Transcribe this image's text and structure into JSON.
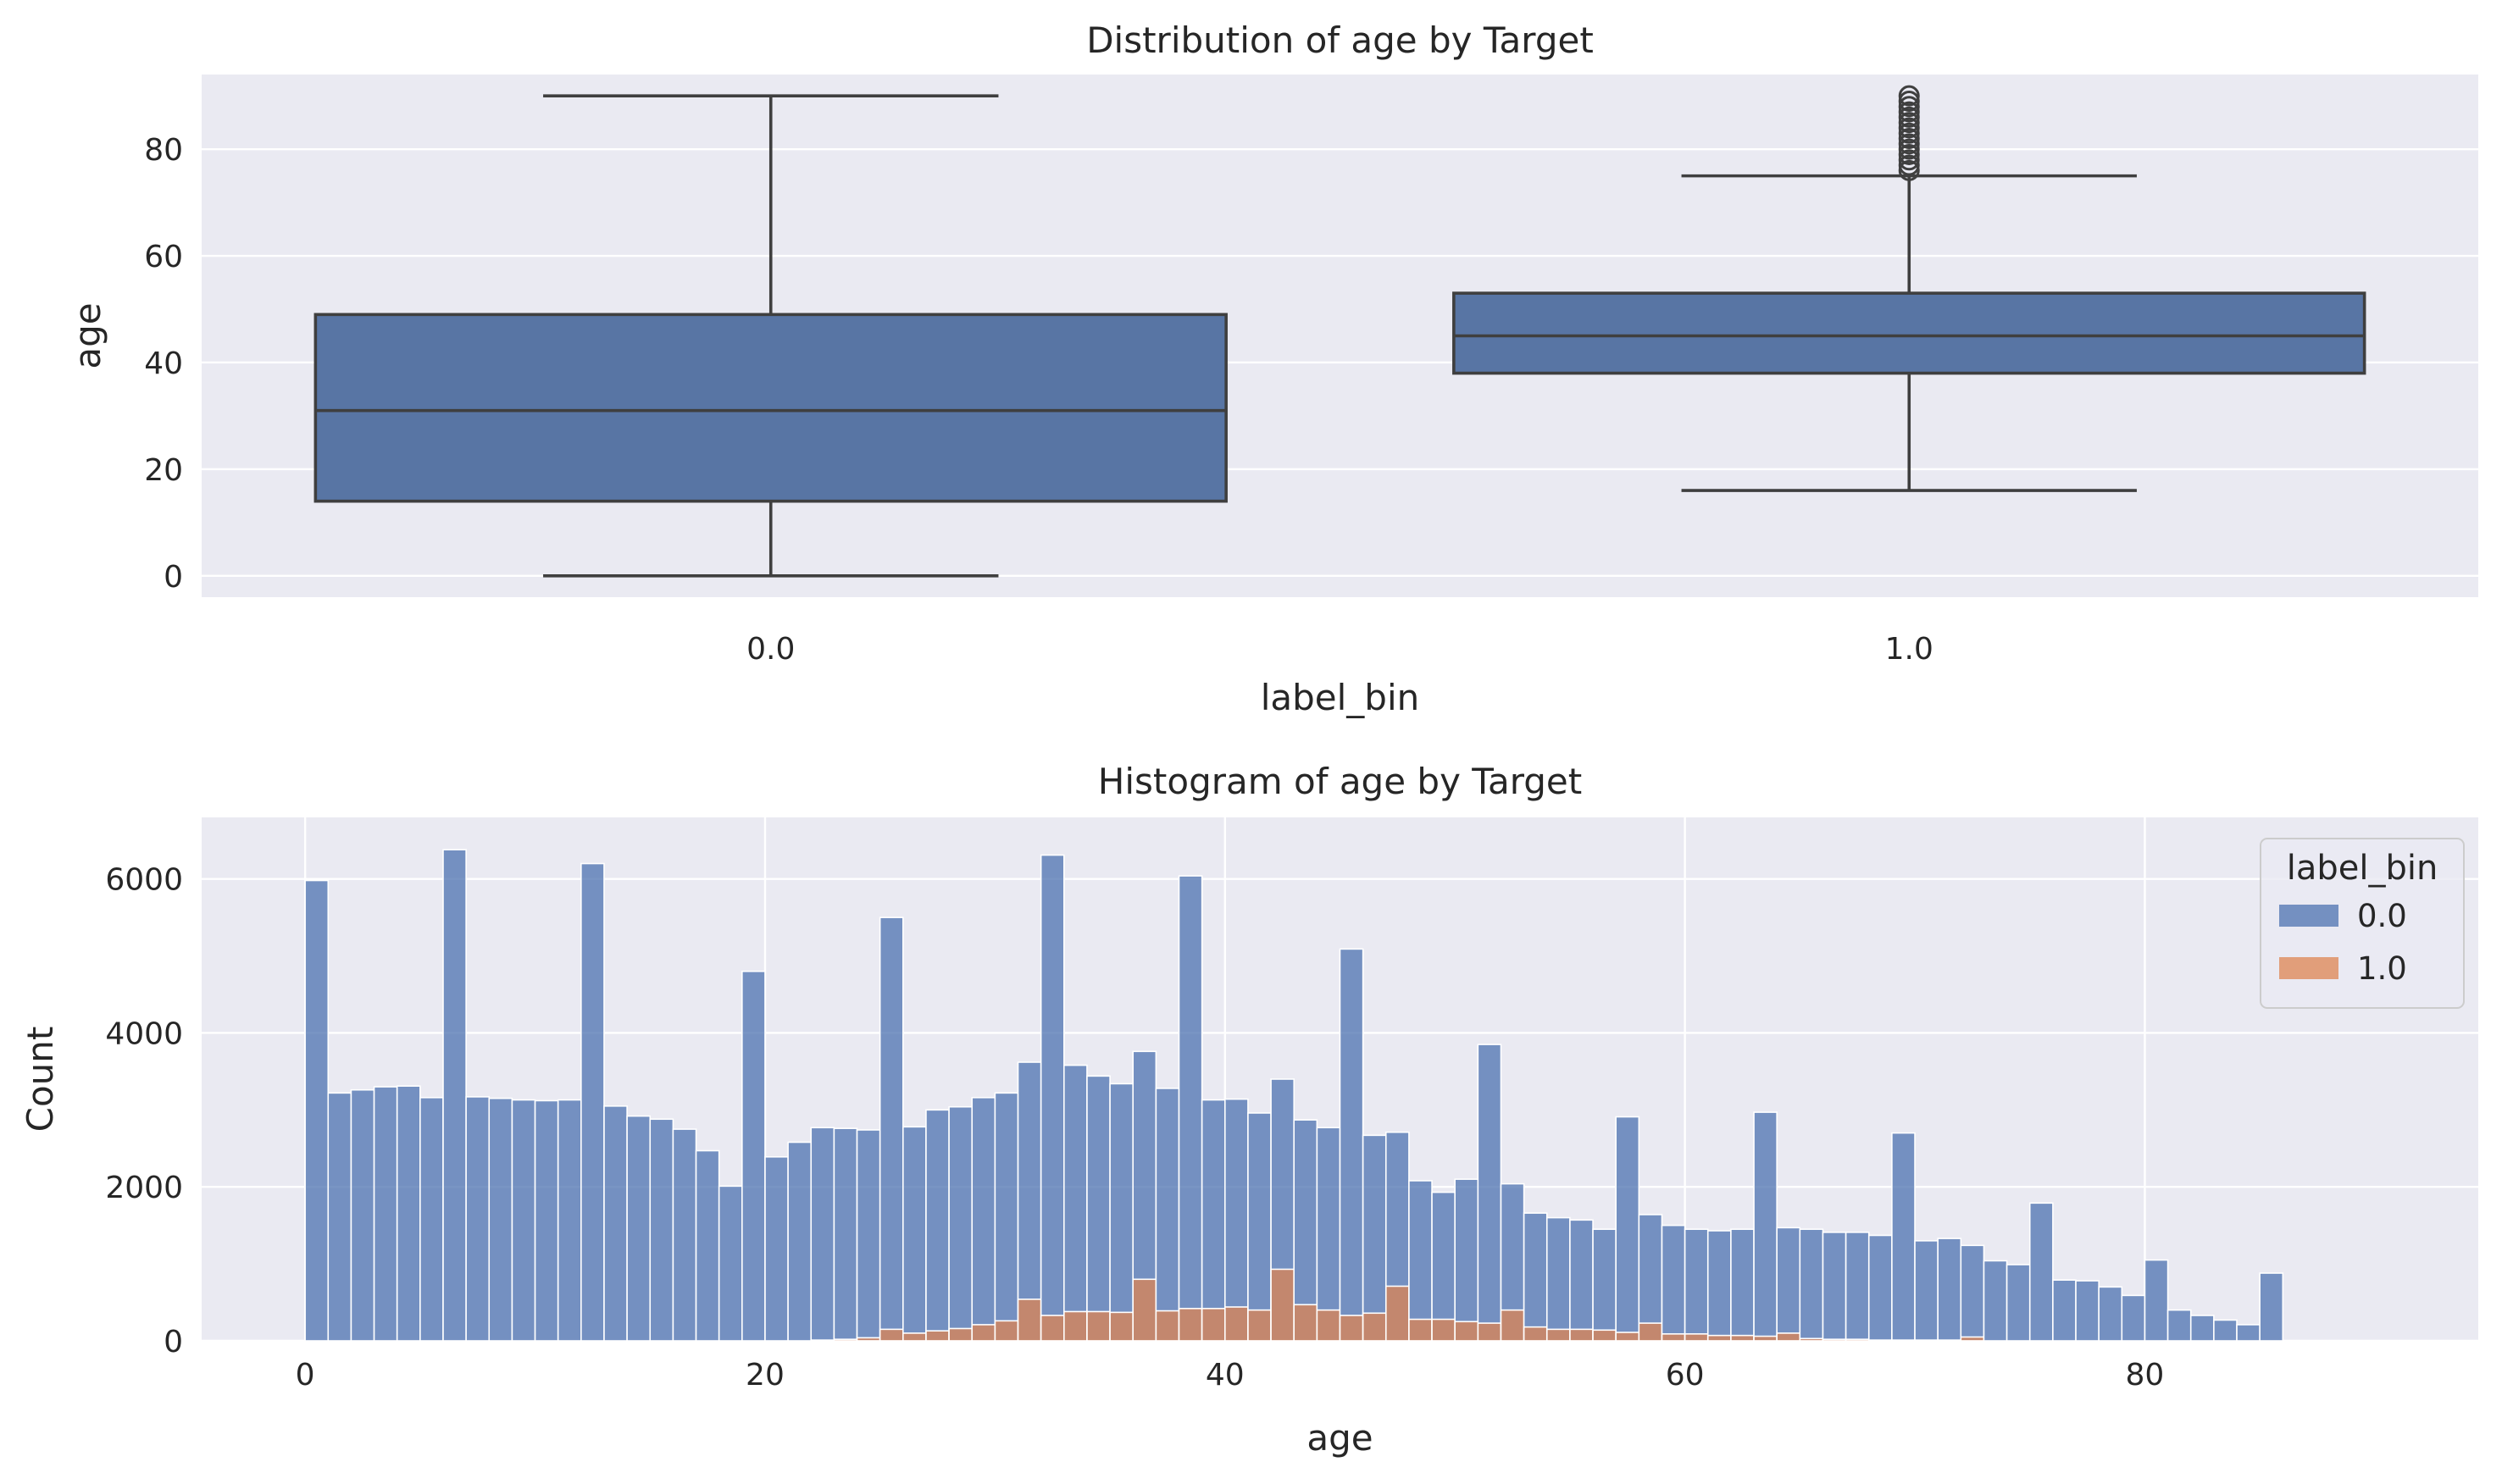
{
  "colors": {
    "background": "#eaeaf2",
    "grid": "#ffffff",
    "box": "#5875a4",
    "box_edge": "#3f3f3f",
    "series_0": "#4c72b0",
    "series_1": "#dd8452"
  },
  "chart_data": [
    {
      "type": "box",
      "title": "Distribution of age by Target",
      "xlabel": "label_bin",
      "ylabel": "age",
      "categories": [
        "0.0",
        "1.0"
      ],
      "yticks": [
        "0",
        "20",
        "40",
        "60",
        "80"
      ],
      "ylim": [
        -4,
        94
      ],
      "grid": true,
      "boxes": [
        {
          "category": "0.0",
          "whisker_low": 0,
          "q1": 14,
          "median": 31,
          "q3": 49,
          "whisker_high": 90,
          "outliers": []
        },
        {
          "category": "1.0",
          "whisker_low": 16,
          "q1": 38,
          "median": 45,
          "q3": 53,
          "whisker_high": 75,
          "outliers": [
            76,
            77,
            78,
            79,
            80,
            81,
            82,
            83,
            84,
            85,
            86,
            87,
            88,
            89,
            90
          ]
        }
      ]
    },
    {
      "type": "histogram",
      "title": "Histogram of age by Target",
      "xlabel": "age",
      "ylabel": "Count",
      "xticks": [
        "0",
        "20",
        "40",
        "60",
        "80"
      ],
      "yticks": [
        "0",
        "2000",
        "4000",
        "6000"
      ],
      "xlim": [
        -4.5,
        94.5
      ],
      "ylim": [
        0,
        6800
      ],
      "grid": true,
      "bin_start": 0,
      "bin_width": 1,
      "legend": {
        "title": "label_bin",
        "position": "top-right",
        "labels": [
          "0.0",
          "1.0"
        ]
      },
      "series": [
        {
          "name": "0.0",
          "values": [
            5980,
            3220,
            3260,
            3300,
            3310,
            3160,
            6380,
            3170,
            3150,
            3130,
            3120,
            3130,
            6200,
            3050,
            2920,
            2880,
            2750,
            2470,
            2010,
            4800,
            2390,
            2580,
            2760,
            2740,
            2700,
            5350,
            2680,
            2870,
            2880,
            2950,
            2960,
            3080,
            5980,
            3200,
            3060,
            2970,
            2960,
            2890,
            5620,
            2710,
            2700,
            2560,
            2470,
            2400,
            2370,
            4760,
            2310,
            2000,
            1800,
            1650,
            1850,
            3620,
            1640,
            1480,
            1450,
            1420,
            1310,
            2800,
            1410,
            1410,
            1360,
            1360,
            1380,
            2910,
            1370,
            1420,
            1390,
            1390,
            1360,
            2690,
            1290,
            1320,
            1190,
            1040,
            990,
            1790,
            790,
            780,
            700,
            590,
            1050,
            400,
            330,
            270,
            210,
            880
          ]
        },
        {
          "name": "1.0",
          "values": [
            0,
            0,
            0,
            0,
            0,
            0,
            0,
            0,
            0,
            0,
            0,
            0,
            0,
            0,
            0,
            0,
            0,
            0,
            0,
            0,
            0,
            0,
            10,
            20,
            40,
            150,
            100,
            130,
            160,
            210,
            260,
            540,
            330,
            380,
            380,
            370,
            800,
            390,
            420,
            420,
            440,
            400,
            930,
            470,
            400,
            330,
            360,
            710,
            280,
            280,
            250,
            230,
            400,
            180,
            150,
            150,
            140,
            110,
            230,
            90,
            90,
            70,
            70,
            60,
            100,
            30,
            20,
            20,
            10,
            10,
            10,
            10,
            50,
            0,
            0,
            0,
            0,
            0,
            0,
            0,
            0,
            0,
            0,
            0,
            0,
            0
          ]
        }
      ]
    }
  ]
}
